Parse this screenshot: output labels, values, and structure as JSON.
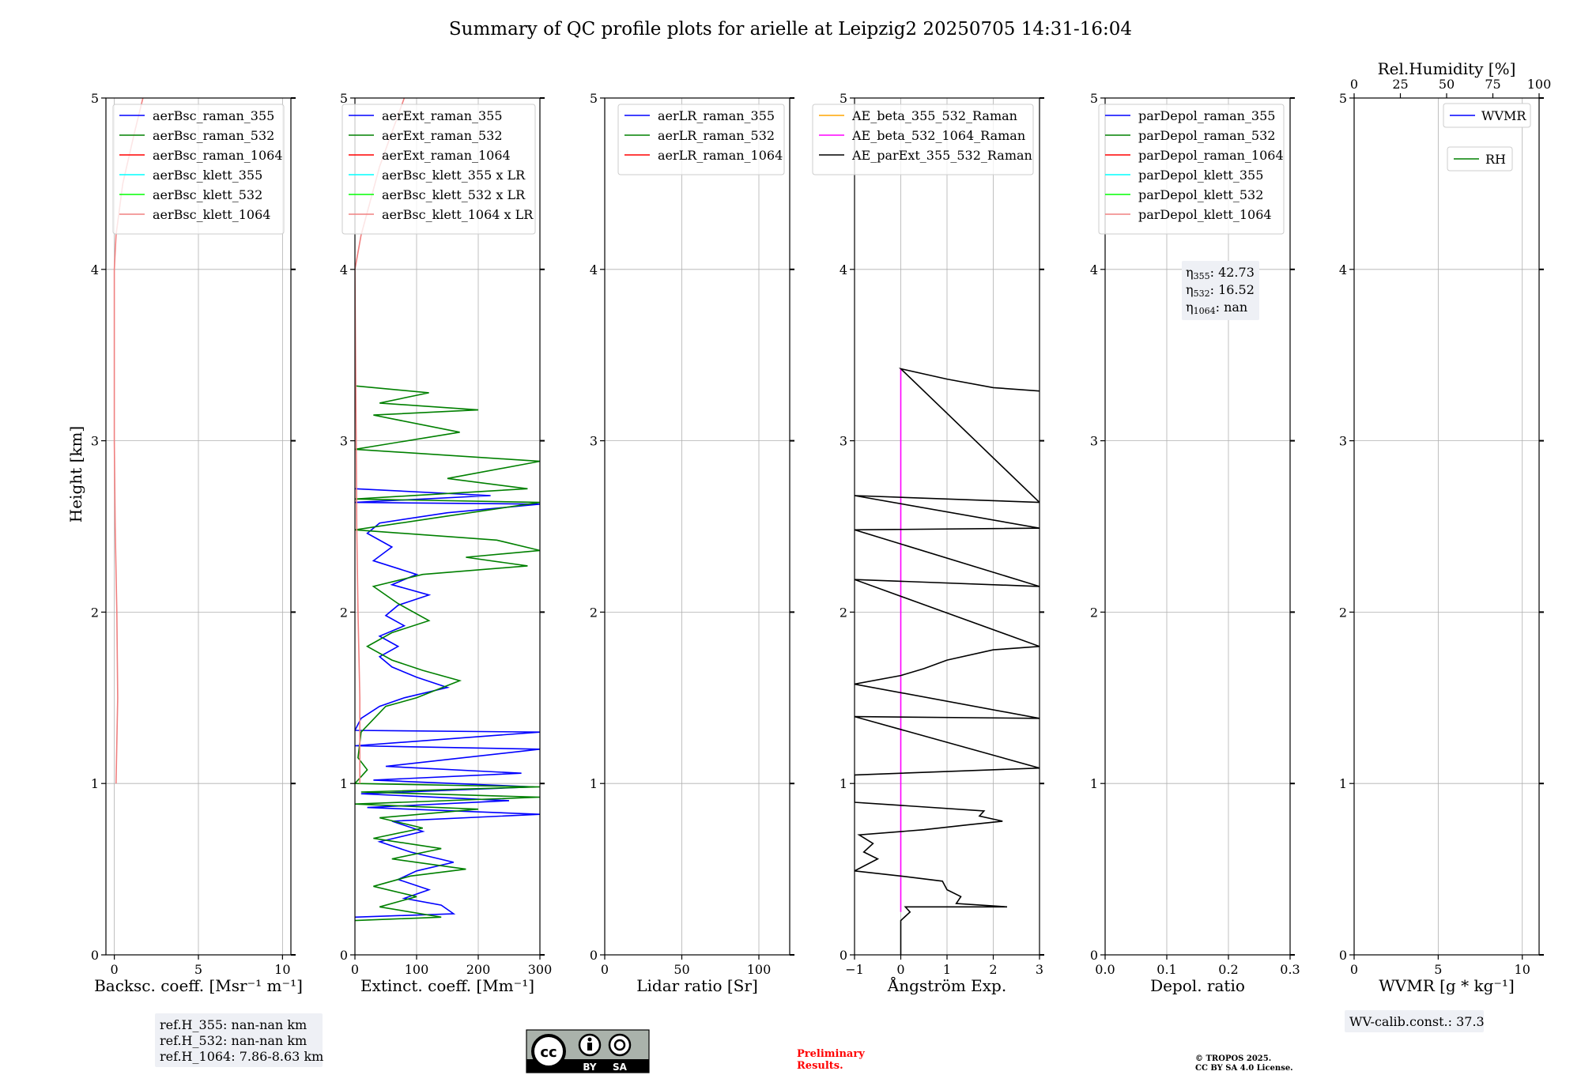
{
  "figure": {
    "title": "Summary of QC profile plots for arielle at Leipzig2 20250705 14:31-16:04",
    "ylabel": "Height [km]",
    "yticks": [
      "0",
      "1",
      "2",
      "3",
      "4",
      "5"
    ]
  },
  "chart_data": [
    {
      "type": "line",
      "panel": "backscatter",
      "xlabel": "Backsc. coeff. [Msr⁻¹ m⁻¹]",
      "xlim": [
        -0.5,
        10.5
      ],
      "ylim": [
        0,
        5
      ],
      "xticks": [
        "0",
        "5",
        "10"
      ],
      "xtick_values": [
        0,
        5,
        10
      ],
      "legend_position": "top-right",
      "legend": [
        {
          "name": "aerBsc_raman_355",
          "color": "#0000ff"
        },
        {
          "name": "aerBsc_raman_532",
          "color": "#008000"
        },
        {
          "name": "aerBsc_raman_1064",
          "color": "#ff0000"
        },
        {
          "name": "aerBsc_klett_355",
          "color": "#00ffff"
        },
        {
          "name": "aerBsc_klett_532",
          "color": "#00ff00"
        },
        {
          "name": "aerBsc_klett_1064",
          "color": "#f08080"
        }
      ],
      "series": [
        {
          "name": "aerBsc_klett_1064",
          "color": "#f08080",
          "points": [
            [
              0.1,
              1.0
            ],
            [
              0.2,
              1.5
            ],
            [
              0.15,
              2.0
            ],
            [
              0.05,
              2.5
            ],
            [
              0.0,
              3.0
            ],
            [
              0.0,
              3.5
            ],
            [
              0.0,
              4.0
            ],
            [
              0.1,
              4.2
            ],
            [
              0.5,
              4.5
            ],
            [
              1.2,
              4.8
            ],
            [
              1.7,
              5.0
            ]
          ]
        }
      ],
      "annotation": [
        "ref.H_355: nan-nan km",
        "ref.H_532: nan-nan km",
        "ref.H_1064: 7.86-8.63 km"
      ]
    },
    {
      "type": "line",
      "panel": "extinction",
      "xlabel": "Extinct. coeff. [Mm⁻¹]",
      "xlim": [
        0,
        300
      ],
      "ylim": [
        0,
        5
      ],
      "xticks": [
        "0",
        "100",
        "200",
        "300"
      ],
      "xtick_values": [
        0,
        100,
        200,
        300
      ],
      "legend_position": "top-right",
      "legend": [
        {
          "name": "aerExt_raman_355",
          "color": "#0000ff"
        },
        {
          "name": "aerExt_raman_532",
          "color": "#008000"
        },
        {
          "name": "aerExt_raman_1064",
          "color": "#ff0000"
        },
        {
          "name": "aerBsc_klett_355 x LR",
          "color": "#00ffff"
        },
        {
          "name": "aerBsc_klett_532 x LR",
          "color": "#00ff00"
        },
        {
          "name": "aerBsc_klett_1064 x LR",
          "color": "#f08080"
        }
      ],
      "series": [
        {
          "name": "aerExt_raman_355",
          "color": "#0000ff",
          "points": [
            [
              0,
              0.22
            ],
            [
              160,
              0.24
            ],
            [
              140,
              0.29
            ],
            [
              80,
              0.33
            ],
            [
              120,
              0.38
            ],
            [
              70,
              0.44
            ],
            [
              100,
              0.49
            ],
            [
              160,
              0.54
            ],
            [
              90,
              0.6
            ],
            [
              40,
              0.66
            ],
            [
              110,
              0.72
            ],
            [
              60,
              0.78
            ],
            [
              300,
              0.82
            ],
            [
              20,
              0.86
            ],
            [
              250,
              0.9
            ],
            [
              10,
              0.94
            ],
            [
              290,
              0.98
            ],
            [
              30,
              1.02
            ],
            [
              270,
              1.06
            ],
            [
              50,
              1.1
            ],
            [
              300,
              1.2
            ],
            [
              0,
              1.22
            ],
            [
              300,
              1.3
            ],
            [
              0,
              1.31
            ],
            [
              10,
              1.38
            ],
            [
              40,
              1.45
            ],
            [
              80,
              1.5
            ],
            [
              150,
              1.56
            ],
            [
              100,
              1.62
            ],
            [
              60,
              1.68
            ],
            [
              40,
              1.74
            ],
            [
              70,
              1.8
            ],
            [
              40,
              1.86
            ],
            [
              80,
              1.92
            ],
            [
              50,
              1.98
            ],
            [
              70,
              2.04
            ],
            [
              120,
              2.1
            ],
            [
              60,
              2.16
            ],
            [
              100,
              2.22
            ],
            [
              30,
              2.3
            ],
            [
              60,
              2.38
            ],
            [
              20,
              2.46
            ],
            [
              40,
              2.52
            ],
            [
              150,
              2.58
            ],
            [
              300,
              2.63
            ],
            [
              0,
              2.64
            ],
            [
              220,
              2.68
            ],
            [
              0,
              2.72
            ]
          ]
        },
        {
          "name": "aerExt_raman_532",
          "color": "#008000",
          "points": [
            [
              0,
              0.2
            ],
            [
              140,
              0.22
            ],
            [
              40,
              0.28
            ],
            [
              100,
              0.34
            ],
            [
              30,
              0.4
            ],
            [
              90,
              0.46
            ],
            [
              180,
              0.5
            ],
            [
              60,
              0.56
            ],
            [
              140,
              0.62
            ],
            [
              30,
              0.68
            ],
            [
              110,
              0.74
            ],
            [
              40,
              0.8
            ],
            [
              200,
              0.85
            ],
            [
              0,
              0.88
            ],
            [
              300,
              0.92
            ],
            [
              10,
              0.95
            ],
            [
              300,
              0.98
            ],
            [
              0,
              1.0
            ],
            [
              20,
              1.08
            ],
            [
              5,
              1.15
            ],
            [
              10,
              1.3
            ],
            [
              50,
              1.45
            ],
            [
              100,
              1.5
            ],
            [
              170,
              1.6
            ],
            [
              110,
              1.66
            ],
            [
              60,
              1.72
            ],
            [
              20,
              1.8
            ],
            [
              60,
              1.88
            ],
            [
              120,
              1.95
            ],
            [
              70,
              2.05
            ],
            [
              30,
              2.15
            ],
            [
              110,
              2.22
            ],
            [
              280,
              2.27
            ],
            [
              180,
              2.32
            ],
            [
              300,
              2.36
            ],
            [
              230,
              2.42
            ],
            [
              0,
              2.48
            ],
            [
              130,
              2.55
            ],
            [
              300,
              2.64
            ],
            [
              0,
              2.66
            ],
            [
              280,
              2.72
            ],
            [
              150,
              2.78
            ],
            [
              300,
              2.88
            ],
            [
              0,
              2.95
            ],
            [
              170,
              3.05
            ],
            [
              30,
              3.15
            ],
            [
              200,
              3.18
            ],
            [
              40,
              3.22
            ],
            [
              120,
              3.28
            ],
            [
              0,
              3.32
            ]
          ]
        },
        {
          "name": "aerBsc_klett_1064 x LR",
          "color": "#f08080",
          "points": [
            [
              8,
              1.0
            ],
            [
              8,
              1.5
            ],
            [
              5,
              2.0
            ],
            [
              3,
              2.5
            ],
            [
              2,
              3.0
            ],
            [
              1,
              3.5
            ],
            [
              0,
              4.0
            ],
            [
              10,
              4.2
            ],
            [
              40,
              4.6
            ],
            [
              80,
              5.0
            ]
          ]
        }
      ]
    },
    {
      "type": "line",
      "panel": "lidar_ratio",
      "xlabel": "Lidar ratio [Sr]",
      "xlim": [
        0,
        120
      ],
      "ylim": [
        0,
        5
      ],
      "xticks": [
        "0",
        "50",
        "100"
      ],
      "xtick_values": [
        0,
        50,
        100
      ],
      "legend_position": "top-right",
      "legend": [
        {
          "name": "aerLR_raman_355",
          "color": "#0000ff"
        },
        {
          "name": "aerLR_raman_532",
          "color": "#008000"
        },
        {
          "name": "aerLR_raman_1064",
          "color": "#ff0000"
        }
      ],
      "series": []
    },
    {
      "type": "line",
      "panel": "angstrom",
      "xlabel": "Ångström Exp.",
      "xlim": [
        -1,
        3
      ],
      "ylim": [
        0,
        5
      ],
      "xticks": [
        "−1",
        "0",
        "1",
        "2",
        "3"
      ],
      "xtick_values": [
        -1,
        0,
        1,
        2,
        3
      ],
      "legend_position": "top-left",
      "legend": [
        {
          "name": "AE_beta_355_532_Raman",
          "color": "#ffa500"
        },
        {
          "name": "AE_beta_532_1064_Raman",
          "color": "#ff00ff"
        },
        {
          "name": "AE_parExt_355_532_Raman",
          "color": "#000000"
        }
      ],
      "series": [
        {
          "name": "AE_beta_532_1064_Raman",
          "color": "#ff00ff",
          "points": [
            [
              0,
              0.25
            ],
            [
              0,
              3.42
            ]
          ]
        },
        {
          "name": "AE_parExt_355_532_Raman",
          "color": "#000000",
          "points": [
            [
              0,
              0.0
            ],
            [
              0,
              0.2
            ],
            [
              0.2,
              0.25
            ],
            [
              0.1,
              0.28
            ],
            [
              2.3,
              0.28
            ],
            [
              1.2,
              0.3
            ],
            [
              1.3,
              0.34
            ],
            [
              1.0,
              0.38
            ],
            [
              0.9,
              0.43
            ],
            [
              0,
              0.46
            ],
            [
              -1,
              0.49
            ],
            [
              -0.5,
              0.56
            ],
            [
              -0.8,
              0.6
            ],
            [
              -0.6,
              0.65
            ],
            [
              -0.9,
              0.7
            ],
            [
              0.5,
              0.73
            ],
            [
              1.5,
              0.76
            ],
            [
              2.2,
              0.78
            ],
            [
              1.7,
              0.81
            ],
            [
              1.8,
              0.84
            ],
            [
              -1,
              0.89
            ],
            [
              -1,
              1.05
            ],
            [
              3,
              1.09
            ],
            [
              -1,
              1.39
            ],
            [
              3,
              1.38
            ],
            [
              -1,
              1.58
            ],
            [
              0,
              1.63
            ],
            [
              0.5,
              1.67
            ],
            [
              1.0,
              1.72
            ],
            [
              2.0,
              1.78
            ],
            [
              3,
              1.8
            ],
            [
              -1,
              2.19
            ],
            [
              3,
              2.15
            ],
            [
              -1,
              2.48
            ],
            [
              3,
              2.49
            ],
            [
              -1,
              2.68
            ],
            [
              3,
              2.64
            ],
            [
              0,
              3.42
            ],
            [
              1,
              3.36
            ],
            [
              2,
              3.31
            ],
            [
              3,
              3.29
            ]
          ]
        }
      ]
    },
    {
      "type": "line",
      "panel": "depolarization",
      "xlabel": "Depol. ratio",
      "xlim": [
        0,
        0.3
      ],
      "ylim": [
        0,
        5
      ],
      "xticks": [
        "0.0",
        "0.1",
        "0.2",
        "0.3"
      ],
      "xtick_values": [
        0,
        0.1,
        0.2,
        0.3
      ],
      "legend_position": "top-right",
      "legend": [
        {
          "name": "parDepol_raman_355",
          "color": "#0000ff"
        },
        {
          "name": "parDepol_raman_532",
          "color": "#008000"
        },
        {
          "name": "parDepol_raman_1064",
          "color": "#ff0000"
        },
        {
          "name": "parDepol_klett_355",
          "color": "#00ffff"
        },
        {
          "name": "parDepol_klett_532",
          "color": "#00ff00"
        },
        {
          "name": "parDepol_klett_1064",
          "color": "#f08080"
        }
      ],
      "series": [],
      "annotation": [
        {
          "sym": "η",
          "sub": "355",
          "text": ": 42.73"
        },
        {
          "sym": "η",
          "sub": "532",
          "text": ": 16.52"
        },
        {
          "sym": "η",
          "sub": "1064",
          "text": ": nan"
        }
      ]
    },
    {
      "type": "line",
      "panel": "water_vapor",
      "xlabel": "WVMR [g * kg⁻¹]",
      "xlim": [
        0,
        11
      ],
      "ylim": [
        0,
        5
      ],
      "xticks": [
        "0",
        "5",
        "10"
      ],
      "xtick_values": [
        0,
        5,
        10
      ],
      "top_axis": {
        "label": "Rel.Humidity [%]",
        "ticks": [
          "0",
          "25",
          "50",
          "75",
          "100"
        ],
        "values": [
          0,
          25,
          50,
          75,
          100
        ],
        "lim": [
          0,
          100
        ]
      },
      "legend_position": "top-right",
      "legend": [
        {
          "name": "WVMR",
          "color": "#0000ff"
        },
        {
          "name": "RH",
          "color": "#008000"
        }
      ],
      "series": [],
      "annotation": [
        "WV-calib.const.: 37.3"
      ]
    }
  ],
  "footer": {
    "license_badge": [
      "BY",
      "SA"
    ],
    "preliminary": [
      "Preliminary",
      "Results."
    ],
    "copyright": [
      "© TROPOS 2025.",
      "CC BY SA 4.0 License."
    ],
    "preliminary_color": "#ff0000"
  }
}
